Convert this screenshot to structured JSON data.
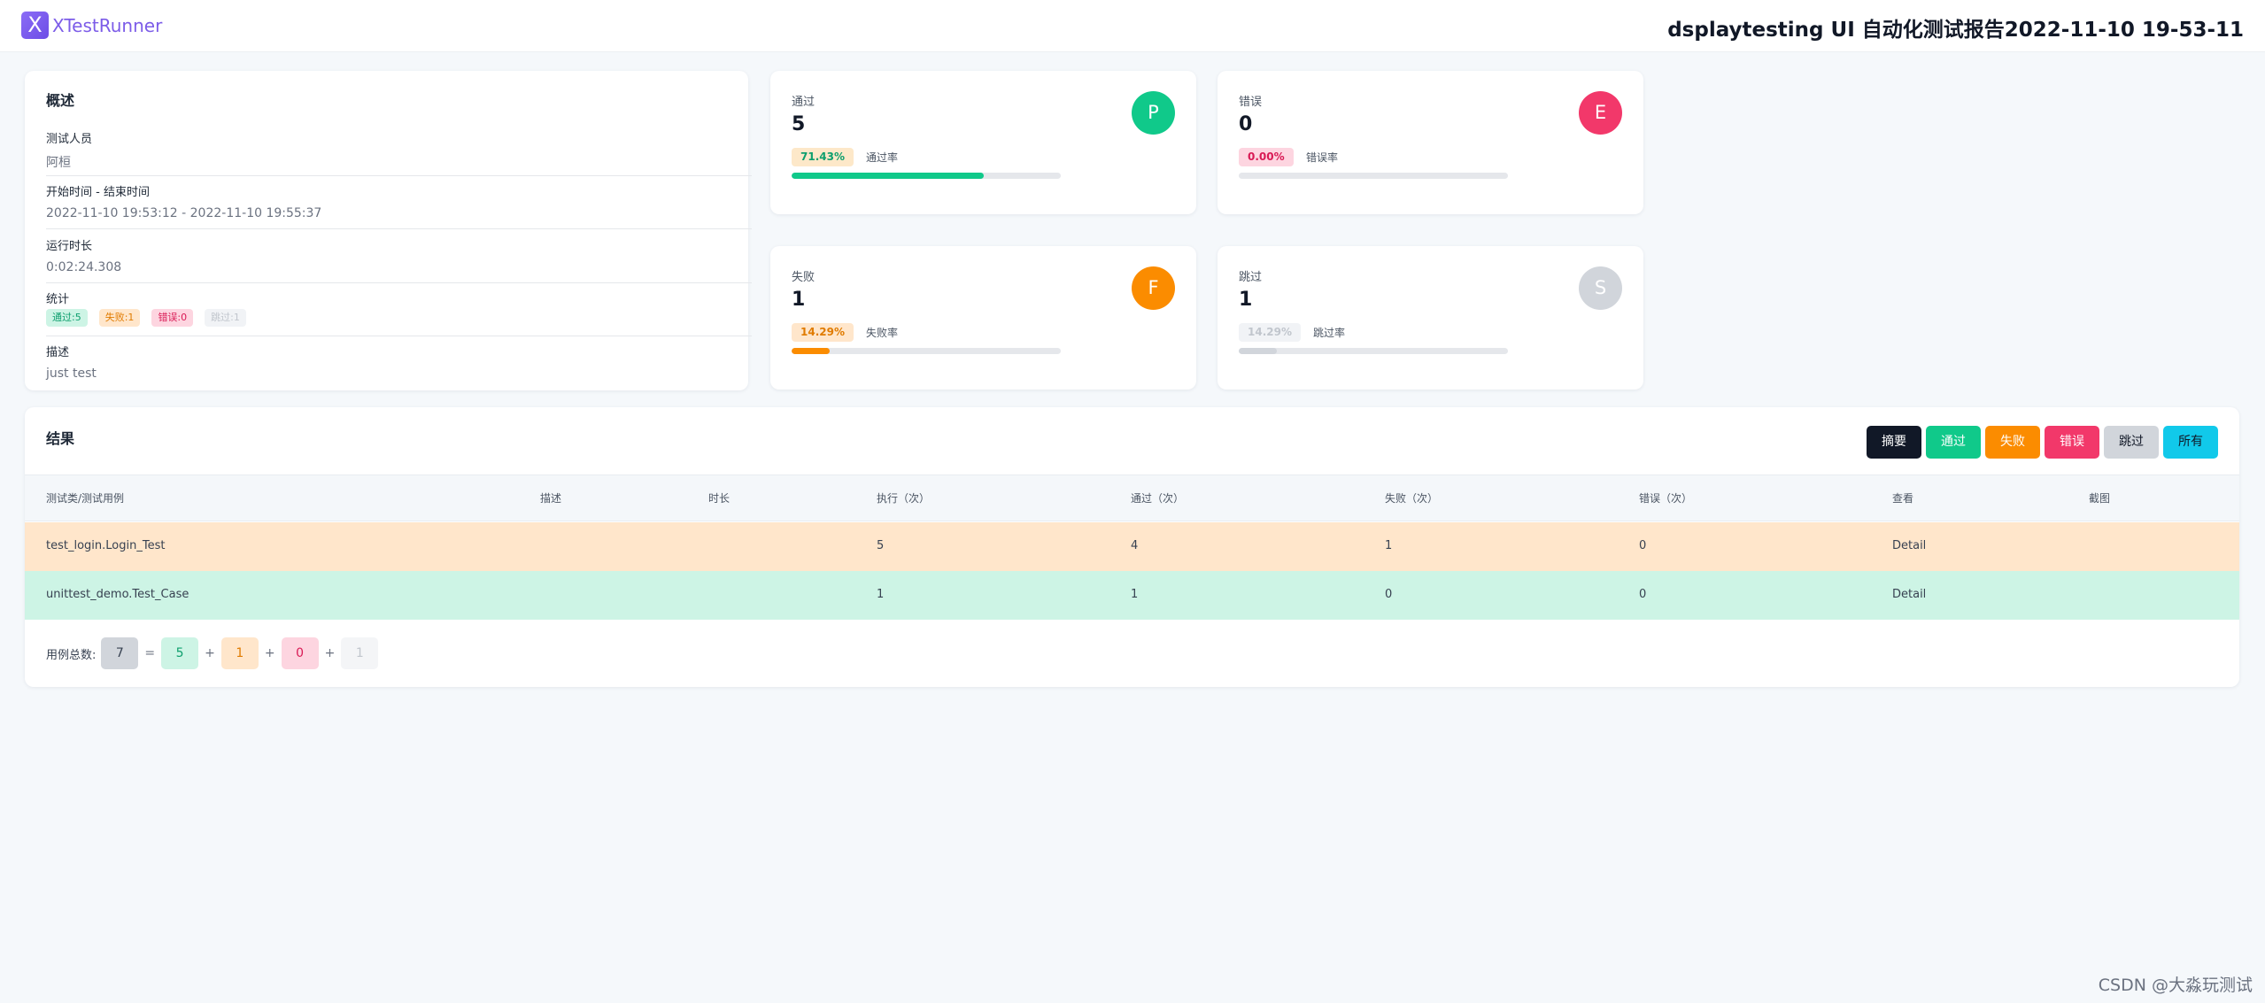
{
  "app": {
    "logo_glyph": "X",
    "name": "XTestRunner",
    "report_title": "dsplaytesting UI 自动化测试报告2022-11-10 19-53-11"
  },
  "overview": {
    "title": "概述",
    "tester_label": "测试人员",
    "tester_value": "阿桓",
    "time_label": "开始时间 - 结束时间",
    "time_value": "2022-11-10 19:53:12 - 2022-11-10 19:55:37",
    "duration_label": "运行时长",
    "duration_value": "0:02:24.308",
    "stats_label": "统计",
    "stats_badges": {
      "pass": "通过:5",
      "fail": "失败:1",
      "error": "错误:0",
      "skip": "跳过:1"
    },
    "desc_label": "描述",
    "desc_value": "just test"
  },
  "stats": {
    "pass": {
      "label": "通过",
      "count": "5",
      "percent_text": "71.43%",
      "percent": 71.43,
      "rate_label": "通过率",
      "icon_letter": "P",
      "color": "#10c98a"
    },
    "error": {
      "label": "错误",
      "count": "0",
      "percent_text": "0.00%",
      "percent": 0,
      "rate_label": "错误率",
      "icon_letter": "E",
      "color": "#f2386a"
    },
    "fail": {
      "label": "失败",
      "count": "1",
      "percent_text": "14.29%",
      "percent": 14.29,
      "rate_label": "失败率",
      "icon_letter": "F",
      "color": "#fb8c00"
    },
    "skip": {
      "label": "跳过",
      "count": "1",
      "percent_text": "14.29%",
      "percent": 14.29,
      "rate_label": "跳过率",
      "icon_letter": "S",
      "color": "#d1d5db"
    }
  },
  "results": {
    "title": "结果",
    "filters": {
      "summary": "摘要",
      "pass": "通过",
      "fail": "失败",
      "error": "错误",
      "skip": "跳过",
      "all": "所有"
    },
    "columns": [
      "测试类/测试用例",
      "描述",
      "时长",
      "执行（次）",
      "通过（次）",
      "失败（次）",
      "错误（次）",
      "查看",
      "截图"
    ],
    "rows": [
      {
        "name": "test_login.Login_Test",
        "desc": "",
        "duration": "",
        "run": "5",
        "pass": "4",
        "fail": "1",
        "error": "0",
        "view": "Detail",
        "screenshot": ""
      },
      {
        "name": "unittest_demo.Test_Case",
        "desc": "",
        "duration": "",
        "run": "1",
        "pass": "1",
        "fail": "0",
        "error": "0",
        "view": "Detail",
        "screenshot": ""
      }
    ],
    "totals": {
      "label": "用例总数:",
      "total": "7",
      "eq": "=",
      "plus": "+",
      "pass": "5",
      "fail": "1",
      "error": "0",
      "skip": "1"
    }
  },
  "watermark": "CSDN @大淼玩测试",
  "colors": {
    "pass": "#10c98a",
    "fail": "#fb8c00",
    "error": "#f2386a",
    "skip": "#d1d5db",
    "dark": "#111827",
    "all": "#11c9ea",
    "fail_row": "#ffe6cb",
    "pass_row": "#cdf4e5"
  }
}
